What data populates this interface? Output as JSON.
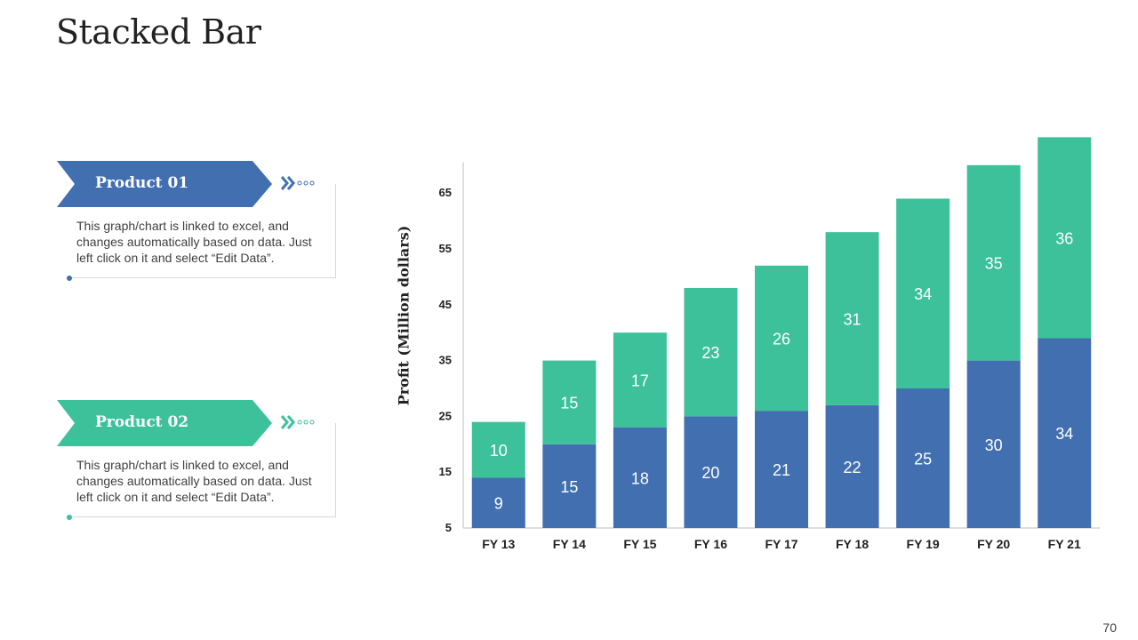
{
  "title": "Stacked Bar",
  "page_number": "70",
  "cards": [
    {
      "label": "Product 01",
      "color": "#416fb0",
      "description": "This graph/chart is linked to excel, and changes automatically based on data. Just left click on it and select “Edit Data”."
    },
    {
      "label": "Product 02",
      "color": "#3cc19a",
      "description": "This graph/chart is linked to excel, and changes automatically based on data. Just left click on it and select “Edit Data”."
    }
  ],
  "chart_data": {
    "type": "bar",
    "stacked": true,
    "title": "",
    "xlabel": "",
    "ylabel": "Profit (Million dollars)",
    "categories": [
      "FY 13",
      "FY 14",
      "FY 15",
      "FY 16",
      "FY 17",
      "FY 18",
      "FY 19",
      "FY 20",
      "FY 21"
    ],
    "series": [
      {
        "name": "Product 01",
        "color": "#416fb0",
        "values": [
          9,
          15,
          18,
          20,
          21,
          22,
          25,
          30,
          34
        ]
      },
      {
        "name": "Product 02",
        "color": "#3cc19a",
        "values": [
          10,
          15,
          17,
          23,
          26,
          31,
          34,
          35,
          36
        ]
      }
    ],
    "yticks": [
      5,
      15,
      25,
      35,
      45,
      55,
      65
    ],
    "ylim": [
      5,
      70
    ],
    "grid": false
  }
}
